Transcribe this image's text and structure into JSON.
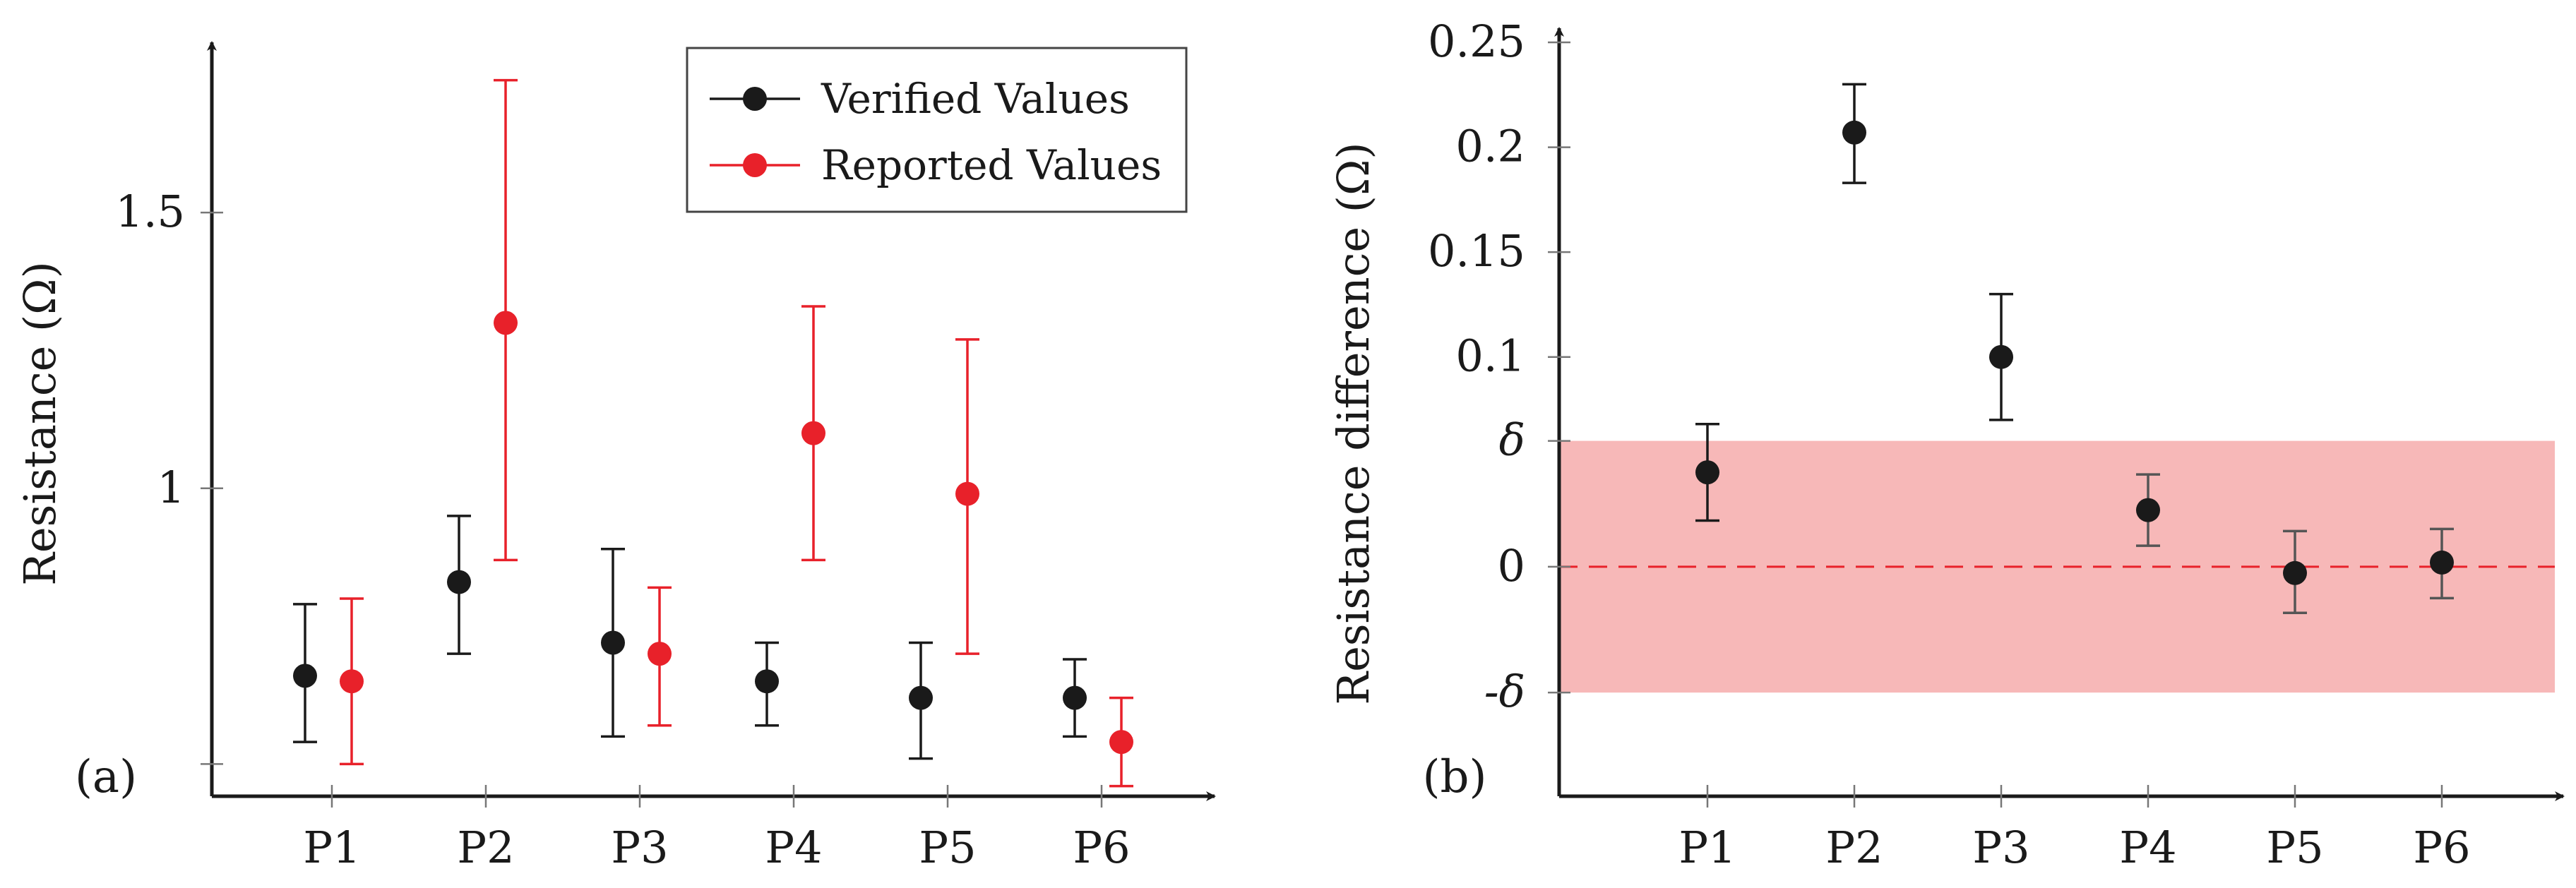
{
  "chart_data": [
    {
      "type": "scatter",
      "panel_label": "(a)",
      "ylabel": "Resistance (Ω)",
      "xlabel": "",
      "categories": [
        "P1",
        "P2",
        "P3",
        "P4",
        "P5",
        "P6"
      ],
      "ylim": [
        0.48,
        1.76
      ],
      "yticks": [
        {
          "value": 0.5,
          "label": ""
        },
        {
          "value": 1.0,
          "label": "1"
        },
        {
          "value": 1.5,
          "label": "1.5"
        }
      ],
      "legend": {
        "placement": "top-right"
      },
      "series": [
        {
          "name": "Verified Values",
          "color": "#1a1a1a",
          "values": [
            0.66,
            0.83,
            0.72,
            0.65,
            0.62,
            0.62
          ],
          "err_low": [
            0.54,
            0.7,
            0.55,
            0.57,
            0.51,
            0.55
          ],
          "err_high": [
            0.79,
            0.95,
            0.89,
            0.72,
            0.72,
            0.69
          ]
        },
        {
          "name": "Reported Values",
          "color": "#e8212a",
          "values": [
            0.65,
            1.3,
            0.7,
            1.1,
            0.99,
            0.54
          ],
          "err_low": [
            0.5,
            0.87,
            0.57,
            0.87,
            0.7,
            0.46
          ],
          "err_high": [
            0.8,
            1.74,
            0.82,
            1.33,
            1.27,
            0.62
          ]
        }
      ]
    },
    {
      "type": "scatter",
      "panel_label": "(b)",
      "ylabel": "Resistance difference (Ω)",
      "xlabel": "",
      "categories": [
        "P1",
        "P2",
        "P3",
        "P4",
        "P5",
        "P6"
      ],
      "ylim": [
        -0.1,
        0.25
      ],
      "yticks": [
        {
          "value": -0.06,
          "label": "-δ"
        },
        {
          "value": 0,
          "label": "0"
        },
        {
          "value": 0.06,
          "label": "δ"
        },
        {
          "value": 0.1,
          "label": "0.1"
        },
        {
          "value": 0.15,
          "label": "0.15"
        },
        {
          "value": 0.2,
          "label": "0.2"
        },
        {
          "value": 0.25,
          "label": "0.25"
        }
      ],
      "band": {
        "low": -0.06,
        "high": 0.06,
        "color": "#f7b8b8"
      },
      "reference_line": {
        "value": 0,
        "color": "#e8212a",
        "style": "dashed"
      },
      "series": [
        {
          "name": "Resistance difference",
          "color": "#1a1a1a",
          "values": [
            0.045,
            0.207,
            0.1,
            0.027,
            -0.003,
            0.002
          ],
          "err_low": [
            0.022,
            0.183,
            0.07,
            0.01,
            -0.022,
            -0.015
          ],
          "err_high": [
            0.068,
            0.23,
            0.13,
            0.044,
            0.017,
            0.018
          ]
        }
      ]
    }
  ]
}
